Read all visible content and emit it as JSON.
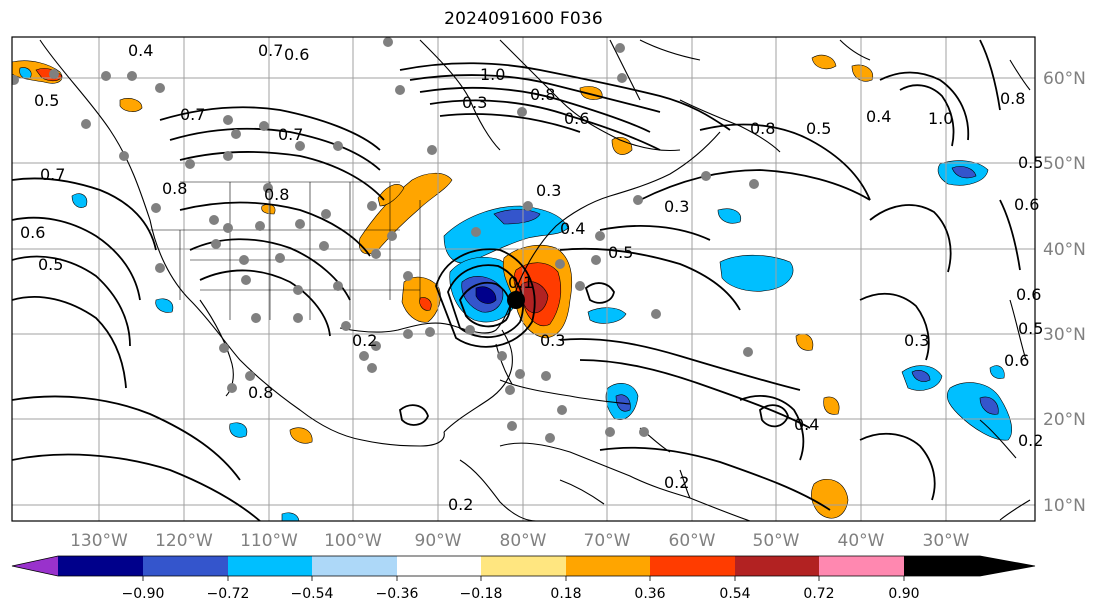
{
  "title": "2024091600 F036",
  "map": {
    "lon_labels": [
      "130°W",
      "120°W",
      "110°W",
      "100°W",
      "90°W",
      "80°W",
      "70°W",
      "60°W",
      "50°W",
      "40°W",
      "30°W"
    ],
    "lat_labels": [
      "60°N",
      "50°N",
      "40°N",
      "30°N",
      "20°N",
      "10°N"
    ],
    "contour_labels": [
      "0.4",
      "0.7",
      "0.6",
      "1.0",
      "0.8",
      "0.6",
      "0.3",
      "0.5",
      "0.7",
      "0.7",
      "0.8",
      "0.4",
      "1.0",
      "0.5",
      "0.8",
      "0.5",
      "0.7",
      "0.6",
      "0.5",
      "0.8",
      "0.8",
      "0.6",
      "0.3",
      "0.5",
      "0.4",
      "0.2",
      "0.3",
      "0.3",
      "0.4",
      "0.2",
      "0.2",
      "0.5",
      "0.6",
      "0.6",
      "0.8",
      "0.1",
      "0.3",
      "0.2"
    ]
  },
  "colorbar": {
    "labels": [
      "−0.90",
      "−0.72",
      "−0.54",
      "−0.36",
      "−0.18",
      "0.18",
      "0.36",
      "0.54",
      "0.72",
      "0.90"
    ],
    "colors": [
      "#9932cc",
      "#00008b",
      "#3455cc",
      "#00bfff",
      "#add8f8",
      "#ffffff",
      "#ffe680",
      "#ffa500",
      "#ff3c00",
      "#b22222",
      "#ff88b0"
    ]
  }
}
